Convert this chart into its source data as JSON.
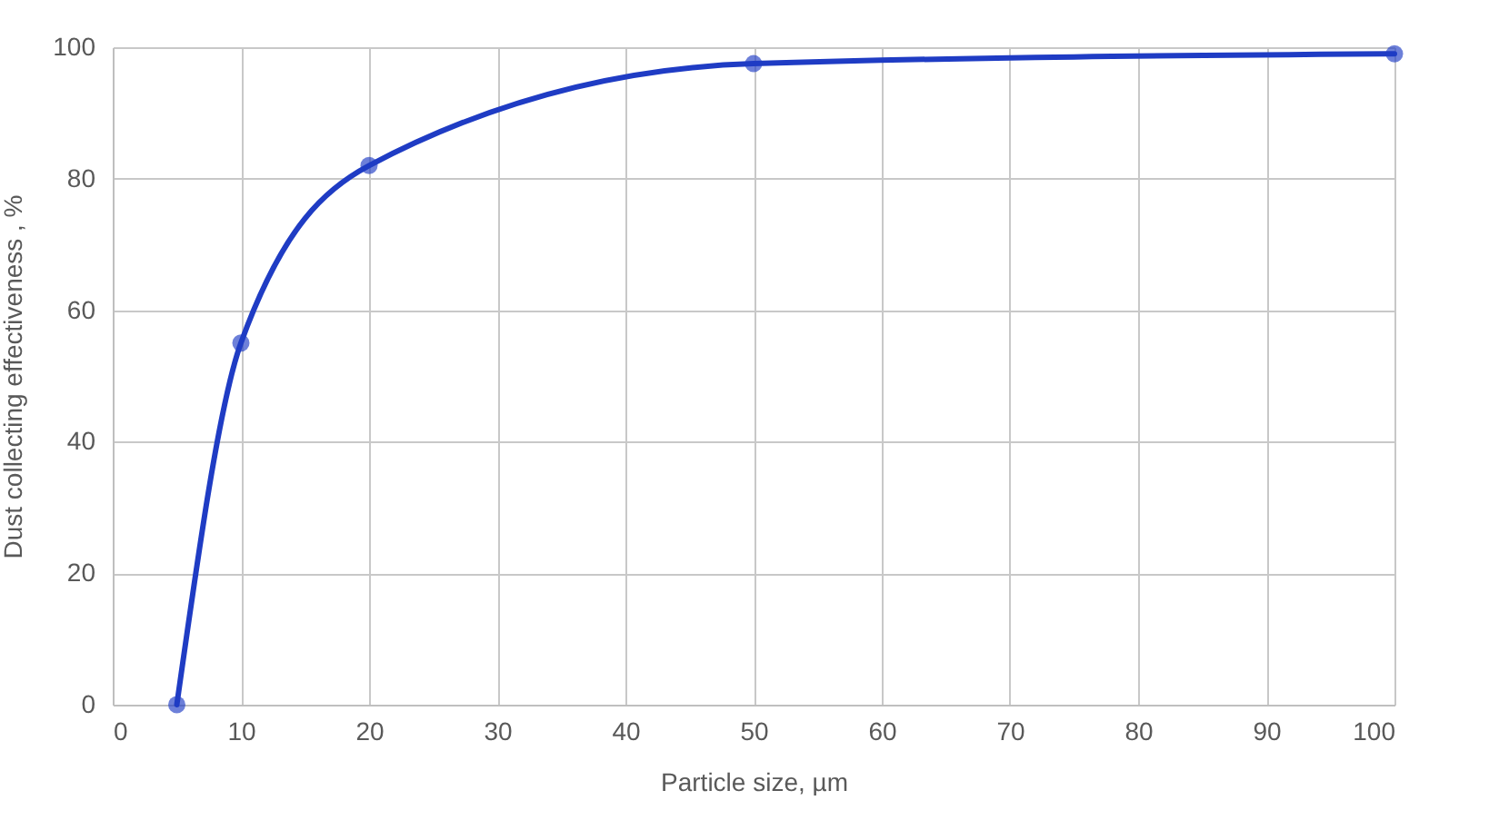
{
  "chart_data": {
    "type": "line",
    "xlabel": "Particle size, µm",
    "ylabel": "Dust collecting effectiveness , %",
    "x": [
      5,
      10,
      20,
      50,
      100
    ],
    "series": [
      {
        "color": "#1f3cc4",
        "values": [
          0,
          55,
          82,
          97.5,
          99
        ]
      }
    ],
    "xlim": [
      0,
      100
    ],
    "xticks": [
      0,
      10,
      20,
      30,
      40,
      50,
      60,
      70,
      80,
      90,
      100
    ],
    "ylim": [
      0,
      100
    ],
    "yticks": [
      0,
      20,
      40,
      60,
      80,
      100
    ],
    "grid": true,
    "marker": "circle",
    "line_style": "solid"
  }
}
